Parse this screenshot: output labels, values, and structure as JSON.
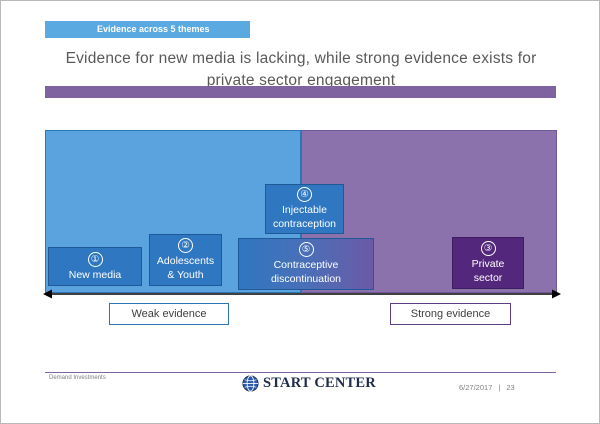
{
  "header": {
    "tag": "Evidence across 5 themes",
    "title_line1": "Evidence for new media is lacking, while strong evidence exists for",
    "title_line2": "private sector engagement"
  },
  "themes": [
    {
      "num": "①",
      "line1": "New media",
      "line2": ""
    },
    {
      "num": "②",
      "line1": "Adolescents",
      "line2": "& Youth"
    },
    {
      "num": "③",
      "line1": "Private",
      "line2": "sector"
    },
    {
      "num": "④",
      "line1": "Injectable",
      "line2": "contraception"
    },
    {
      "num": "⑤",
      "line1": "Contraceptive",
      "line2": "discontinuation"
    }
  ],
  "legend": {
    "weak": "Weak evidence",
    "strong": "Strong evidence"
  },
  "footer": {
    "left": "Demand Investments",
    "logo": "START CENTER",
    "date": "6/27/2017",
    "separator": "|",
    "page": "23"
  },
  "colors": {
    "weak_zone": "#5aa3df",
    "strong_zone": "#8c72ad",
    "accent_bar": "#7f63a1"
  }
}
